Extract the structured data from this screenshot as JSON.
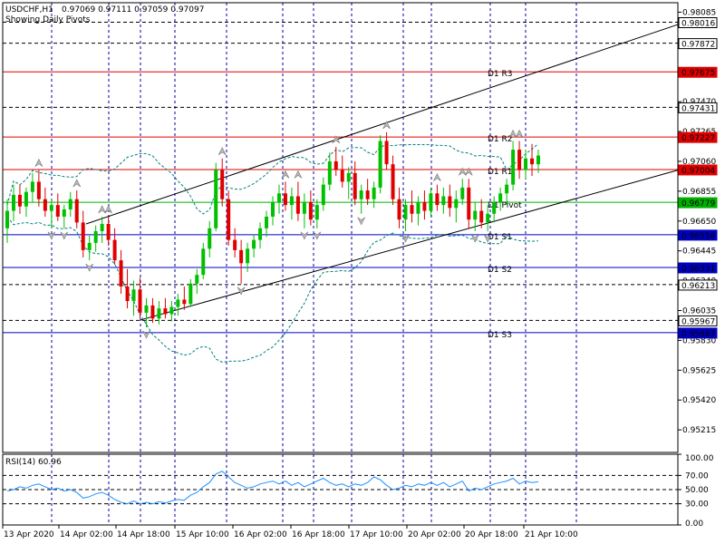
{
  "chart_data": {
    "type": "candlestick",
    "symbol": "USDCHF,H1",
    "header_values": "0.97069 0.97111 0.97059 0.97097",
    "subtitle": "Showing Daily Pivots",
    "ylim": [
      0.9506,
      0.9815
    ],
    "grid": true,
    "price_ticks": [
      "0.98085",
      "0.97872",
      "0.97470",
      "0.97265",
      "0.97060",
      "0.96855",
      "0.96650",
      "0.96445",
      "0.96240",
      "0.96035",
      "0.95830",
      "0.95625",
      "0.95420",
      "0.95215"
    ],
    "x_tick_labels": [
      "13 Apr 2020",
      "14 Apr 02:00",
      "14 Apr 18:00",
      "15 Apr 10:00",
      "16 Apr 02:00",
      "16 Apr 18:00",
      "17 Apr 10:00",
      "20 Apr 02:00",
      "20 Apr 18:00",
      "21 Apr 10:00"
    ],
    "pivot_lines": [
      {
        "name": "D1 R3",
        "value": 0.97675,
        "color": "#e00000"
      },
      {
        "name": "D1 R2",
        "value": 0.97227,
        "color": "#e00000"
      },
      {
        "name": "D1 R1",
        "value": 0.97004,
        "color": "#e00000"
      },
      {
        "name": "D1 Pivot",
        "value": 0.96779,
        "color": "#00b000"
      },
      {
        "name": "D1 S1",
        "value": 0.96556,
        "color": "#0000c0"
      },
      {
        "name": "D1 S2",
        "value": 0.96331,
        "color": "#0000c0"
      },
      {
        "name": "D1 S3",
        "value": 0.95883,
        "color": "#0000c0"
      }
    ],
    "highlight_labels": [
      {
        "text": "0.98016",
        "value": 0.98016
      },
      {
        "text": "0.97872",
        "value": 0.97872
      },
      {
        "text": "0.97675",
        "value": 0.97675,
        "color": "#e00000"
      },
      {
        "text": "0.97431",
        "value": 0.97431
      },
      {
        "text": "0.97227",
        "value": 0.97227,
        "color": "#e00000"
      },
      {
        "text": "0.97004",
        "value": 0.97004,
        "color": "#e00000"
      },
      {
        "text": "0.96779",
        "value": 0.96779,
        "color": "#00b000"
      },
      {
        "text": "0.96556",
        "value": 0.96556,
        "color": "#0000c0"
      },
      {
        "text": "0.96331",
        "value": 0.96331,
        "color": "#0000c0"
      },
      {
        "text": "0.96213",
        "value": 0.96213
      },
      {
        "text": "0.95967",
        "value": 0.95967
      },
      {
        "text": "0.95883",
        "value": 0.95883,
        "color": "#0000c0"
      }
    ],
    "candles": [
      [
        0.966,
        0.968,
        0.965,
        0.9672
      ],
      [
        0.9672,
        0.969,
        0.9665,
        0.9683
      ],
      [
        0.9683,
        0.969,
        0.967,
        0.9675
      ],
      [
        0.9675,
        0.9688,
        0.9668,
        0.9685
      ],
      [
        0.9685,
        0.9698,
        0.9678,
        0.9692
      ],
      [
        0.9692,
        0.97,
        0.9675,
        0.968
      ],
      [
        0.968,
        0.9688,
        0.9668,
        0.9672
      ],
      [
        0.9672,
        0.968,
        0.966,
        0.9676
      ],
      [
        0.9676,
        0.9684,
        0.9665,
        0.9668
      ],
      [
        0.9668,
        0.9676,
        0.966,
        0.9673
      ],
      [
        0.9673,
        0.9685,
        0.9668,
        0.968
      ],
      [
        0.968,
        0.9686,
        0.966,
        0.9664
      ],
      [
        0.9664,
        0.9672,
        0.964,
        0.9645
      ],
      [
        0.9645,
        0.9655,
        0.9638,
        0.965
      ],
      [
        0.965,
        0.9662,
        0.9644,
        0.9658
      ],
      [
        0.9658,
        0.9668,
        0.965,
        0.9663
      ],
      [
        0.9663,
        0.9668,
        0.9648,
        0.9652
      ],
      [
        0.9652,
        0.966,
        0.9635,
        0.9638
      ],
      [
        0.9638,
        0.9645,
        0.9615,
        0.962
      ],
      [
        0.962,
        0.9632,
        0.9605,
        0.961
      ],
      [
        0.961,
        0.9624,
        0.96,
        0.9618
      ],
      [
        0.9618,
        0.9626,
        0.9598,
        0.9602
      ],
      [
        0.9602,
        0.9612,
        0.9592,
        0.9607
      ],
      [
        0.9607,
        0.9612,
        0.9595,
        0.9598
      ],
      [
        0.9598,
        0.961,
        0.9594,
        0.9605
      ],
      [
        0.9605,
        0.9612,
        0.9598,
        0.9601
      ],
      [
        0.9601,
        0.961,
        0.9596,
        0.9606
      ],
      [
        0.9606,
        0.9615,
        0.96,
        0.9611
      ],
      [
        0.9611,
        0.962,
        0.9604,
        0.9608
      ],
      [
        0.9608,
        0.9625,
        0.9606,
        0.9622
      ],
      [
        0.9622,
        0.9632,
        0.9615,
        0.9628
      ],
      [
        0.9628,
        0.965,
        0.9625,
        0.9646
      ],
      [
        0.9646,
        0.9665,
        0.964,
        0.966
      ],
      [
        0.966,
        0.9705,
        0.9658,
        0.97
      ],
      [
        0.97,
        0.9708,
        0.9675,
        0.968
      ],
      [
        0.968,
        0.9686,
        0.9648,
        0.9652
      ],
      [
        0.9652,
        0.966,
        0.964,
        0.9645
      ],
      [
        0.9645,
        0.9652,
        0.9622,
        0.9636
      ],
      [
        0.9636,
        0.965,
        0.963,
        0.9646
      ],
      [
        0.9646,
        0.9656,
        0.964,
        0.9652
      ],
      [
        0.9652,
        0.9664,
        0.9646,
        0.966
      ],
      [
        0.966,
        0.9672,
        0.9654,
        0.9668
      ],
      [
        0.9668,
        0.9682,
        0.9662,
        0.9678
      ],
      [
        0.9678,
        0.969,
        0.967,
        0.9684
      ],
      [
        0.9684,
        0.9692,
        0.9672,
        0.9676
      ],
      [
        0.9676,
        0.9688,
        0.9666,
        0.9682
      ],
      [
        0.9682,
        0.9692,
        0.9665,
        0.967
      ],
      [
        0.967,
        0.9684,
        0.966,
        0.9678
      ],
      [
        0.9678,
        0.9686,
        0.9662,
        0.9666
      ],
      [
        0.9666,
        0.968,
        0.966,
        0.9676
      ],
      [
        0.9676,
        0.9695,
        0.9672,
        0.969
      ],
      [
        0.969,
        0.9712,
        0.9686,
        0.9706
      ],
      [
        0.9706,
        0.9716,
        0.9696,
        0.97
      ],
      [
        0.97,
        0.971,
        0.9688,
        0.9692
      ],
      [
        0.9692,
        0.9702,
        0.968,
        0.9698
      ],
      [
        0.9698,
        0.9706,
        0.9676,
        0.968
      ],
      [
        0.968,
        0.969,
        0.967,
        0.9686
      ],
      [
        0.9686,
        0.9694,
        0.9676,
        0.968
      ],
      [
        0.968,
        0.9692,
        0.9674,
        0.9688
      ],
      [
        0.9688,
        0.9724,
        0.9684,
        0.972
      ],
      [
        0.972,
        0.9726,
        0.97,
        0.9704
      ],
      [
        0.9704,
        0.971,
        0.9676,
        0.968
      ],
      [
        0.968,
        0.9688,
        0.966,
        0.9666
      ],
      [
        0.9666,
        0.968,
        0.9658,
        0.9676
      ],
      [
        0.9676,
        0.9686,
        0.9664,
        0.967
      ],
      [
        0.967,
        0.9682,
        0.9662,
        0.9678
      ],
      [
        0.9678,
        0.9686,
        0.9666,
        0.9672
      ],
      [
        0.9672,
        0.9688,
        0.9668,
        0.9684
      ],
      [
        0.9684,
        0.969,
        0.9672,
        0.9676
      ],
      [
        0.9676,
        0.9688,
        0.967,
        0.9682
      ],
      [
        0.9682,
        0.969,
        0.9668,
        0.9674
      ],
      [
        0.9674,
        0.9686,
        0.9664,
        0.968
      ],
      [
        0.968,
        0.9694,
        0.9676,
        0.9688
      ],
      [
        0.9688,
        0.9694,
        0.966,
        0.9666
      ],
      [
        0.9666,
        0.9678,
        0.9658,
        0.9672
      ],
      [
        0.9672,
        0.968,
        0.966,
        0.9664
      ],
      [
        0.9664,
        0.9676,
        0.9658,
        0.967
      ],
      [
        0.967,
        0.9682,
        0.9664,
        0.9678
      ],
      [
        0.9678,
        0.9688,
        0.9672,
        0.9684
      ],
      [
        0.9684,
        0.9694,
        0.9676,
        0.969
      ],
      [
        0.969,
        0.972,
        0.9686,
        0.9714
      ],
      [
        0.9714,
        0.972,
        0.9694,
        0.97
      ],
      [
        0.97,
        0.9714,
        0.9694,
        0.9708
      ],
      [
        0.9708,
        0.9718,
        0.9696,
        0.9704
      ],
      [
        0.9704,
        0.9714,
        0.9698,
        0.971
      ]
    ],
    "channel_lines": [
      {
        "x1": 95,
        "y1": 0.9663,
        "x2": 748,
        "y2": 0.98
      },
      {
        "x1": 155,
        "y1": 0.9597,
        "x2": 748,
        "y2": 0.97
      }
    ],
    "rsi": {
      "label": "RSI(14) 60.96",
      "ylim": [
        0,
        100
      ],
      "tick_labels": [
        "100.00",
        "70.00",
        "50.00",
        "30.00",
        "0.00"
      ],
      "tick_values": [
        100,
        70,
        50,
        30,
        0
      ],
      "level_lines": [
        70,
        50,
        30
      ],
      "values": [
        48,
        50,
        54,
        52,
        56,
        58,
        54,
        50,
        52,
        48,
        50,
        46,
        38,
        40,
        44,
        46,
        42,
        36,
        32,
        30,
        34,
        30,
        32,
        30,
        33,
        31,
        34,
        36,
        35,
        42,
        46,
        54,
        60,
        72,
        76,
        68,
        60,
        56,
        52,
        54,
        58,
        60,
        62,
        58,
        62,
        56,
        60,
        54,
        58,
        62,
        66,
        60,
        56,
        58,
        54,
        58,
        56,
        60,
        68,
        64,
        56,
        50,
        52,
        56,
        54,
        58,
        56,
        60,
        56,
        60,
        54,
        58,
        62,
        48,
        52,
        50,
        54,
        58,
        60,
        62,
        66,
        58,
        62,
        60,
        61
      ]
    }
  }
}
